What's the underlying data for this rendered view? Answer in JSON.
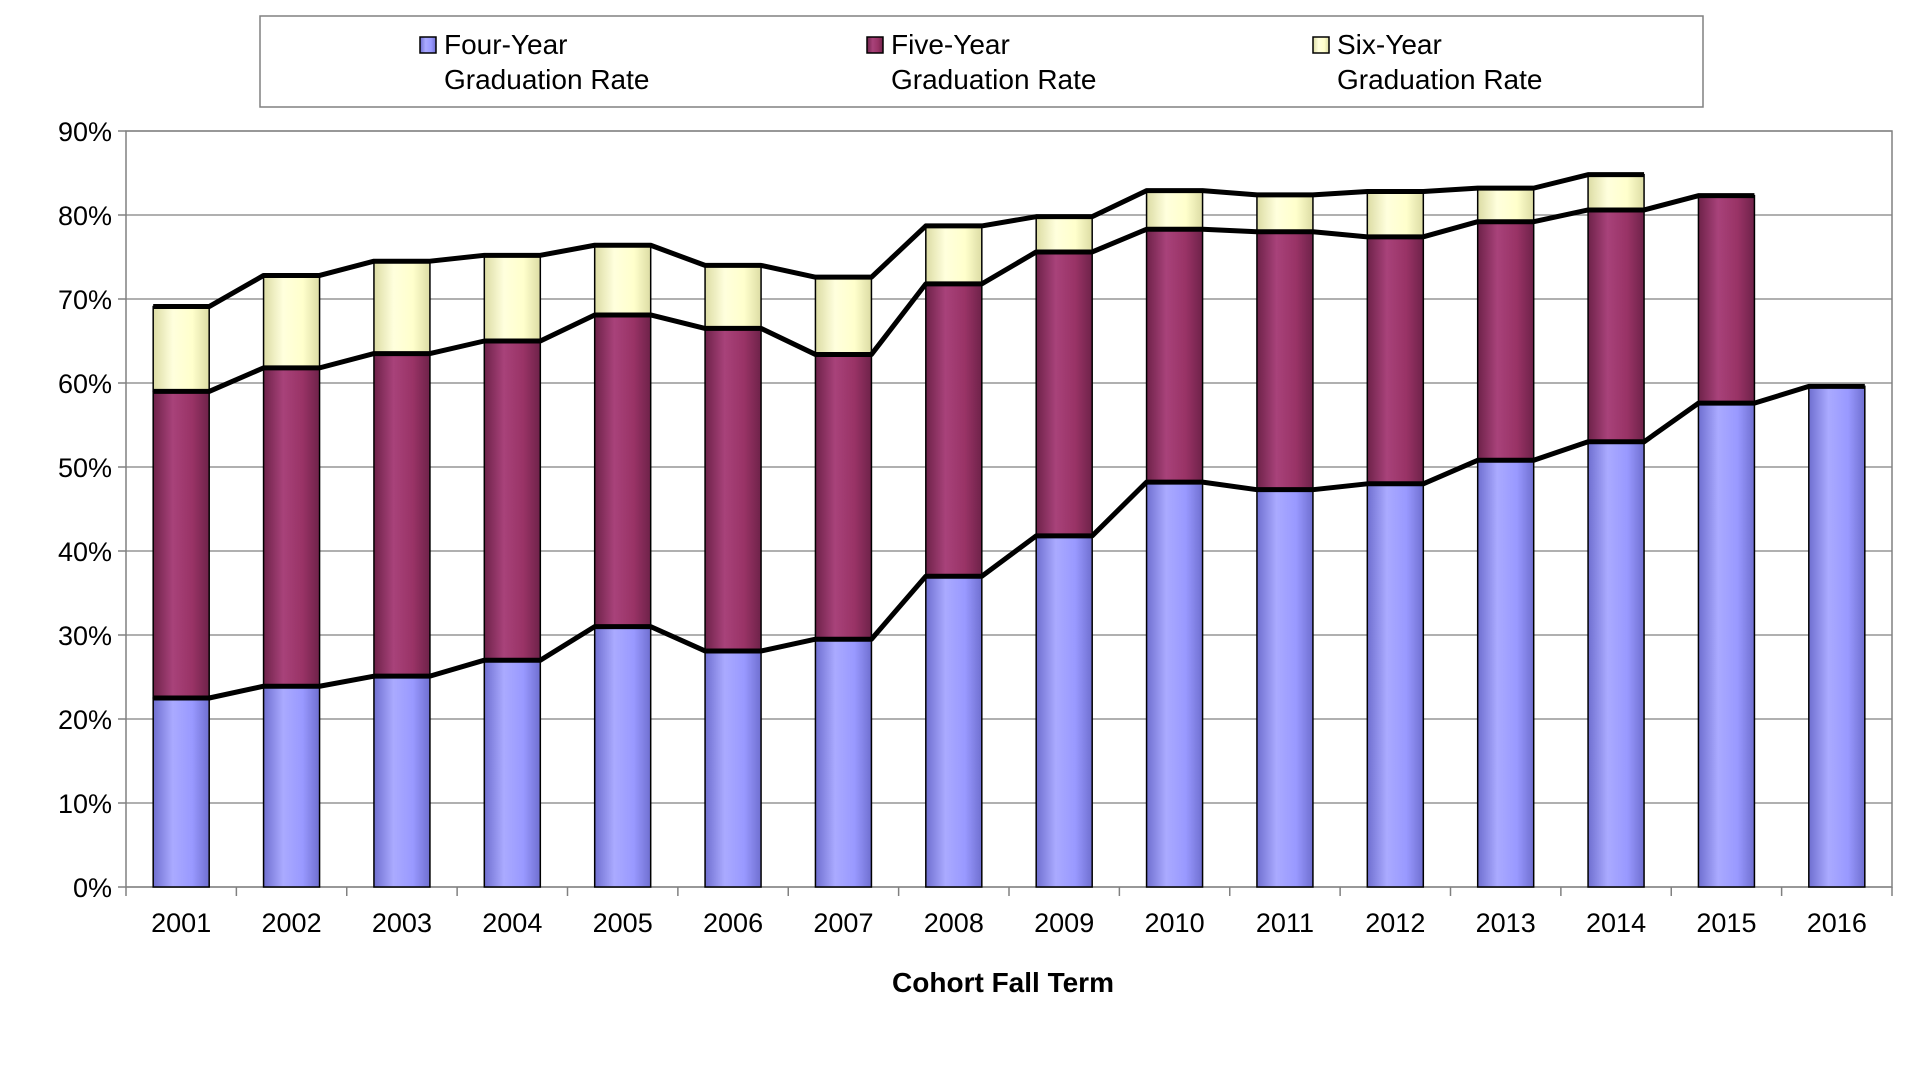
{
  "colors": {
    "four": "#9999ff",
    "five": "#993366",
    "six": "#ffffcc",
    "grid": "#808080",
    "line": "#000000"
  },
  "chart_data": {
    "type": "bar",
    "stacked": true,
    "categories": [
      "2001",
      "2002",
      "2003",
      "2004",
      "2005",
      "2006",
      "2007",
      "2008",
      "2009",
      "2010",
      "2011",
      "2012",
      "2013",
      "2014",
      "2015",
      "2016"
    ],
    "series": [
      {
        "name": "Four-Year Graduation Rate",
        "legend_lines": [
          "Four-Year",
          "Graduation Rate"
        ],
        "color_key": "four",
        "values": [
          22.5,
          23.9,
          25.1,
          27.0,
          31.0,
          28.1,
          29.5,
          37.0,
          41.8,
          48.2,
          47.3,
          48.0,
          50.8,
          53.0,
          57.6,
          59.6
        ]
      },
      {
        "name": "Five-Year Graduation Rate",
        "legend_lines": [
          "Five-Year",
          "Graduation Rate"
        ],
        "color_key": "five",
        "values": [
          36.5,
          37.9,
          38.4,
          38.0,
          37.1,
          38.4,
          33.9,
          34.8,
          33.8,
          30.1,
          30.7,
          29.4,
          28.4,
          27.6,
          24.7,
          null
        ]
      },
      {
        "name": "Six-Year Graduation Rate",
        "legend_lines": [
          "Six-Year",
          "Graduation Rate"
        ],
        "color_key": "six",
        "values": [
          10.1,
          11.0,
          11.0,
          10.2,
          8.3,
          7.5,
          9.2,
          6.9,
          4.2,
          4.6,
          4.4,
          5.4,
          4.0,
          4.2,
          null,
          null
        ]
      }
    ],
    "xlabel": "Cohort Fall Term",
    "ylabel": "",
    "ylim": [
      0,
      90
    ],
    "yticks": [
      0,
      10,
      20,
      30,
      40,
      50,
      60,
      70,
      80,
      90
    ],
    "ytick_suffix": "%",
    "grid": true,
    "legend_position": "top"
  }
}
